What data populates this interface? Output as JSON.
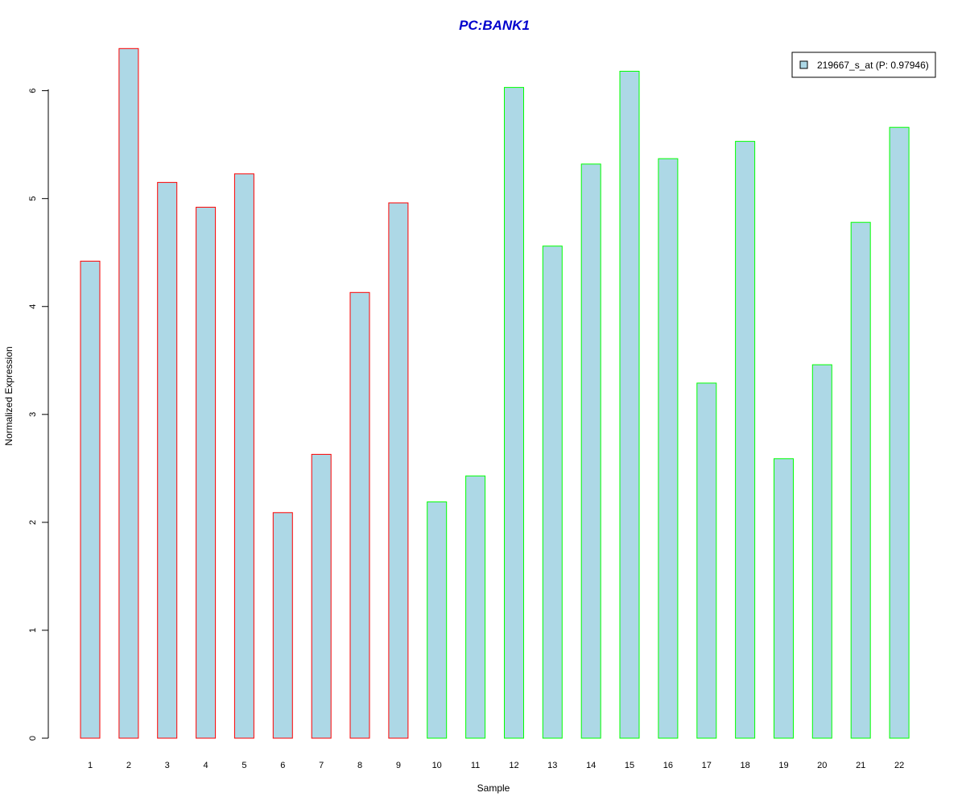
{
  "chart_data": {
    "type": "bar",
    "title": "PC:BANK1",
    "xlabel": "Sample",
    "ylabel": "Normalized Expression",
    "ylim": [
      0,
      6.4
    ],
    "yticks": [
      0,
      1,
      2,
      3,
      4,
      5,
      6
    ],
    "categories": [
      "1",
      "2",
      "3",
      "4",
      "5",
      "6",
      "7",
      "8",
      "9",
      "10",
      "11",
      "12",
      "13",
      "14",
      "15",
      "16",
      "17",
      "18",
      "19",
      "20",
      "21",
      "22"
    ],
    "values": [
      4.42,
      6.39,
      5.15,
      4.92,
      5.23,
      2.09,
      2.63,
      4.13,
      4.96,
      2.19,
      2.43,
      6.03,
      4.56,
      5.32,
      6.18,
      5.37,
      3.29,
      5.53,
      2.59,
      3.46,
      4.78,
      5.66
    ],
    "groups": [
      "red",
      "red",
      "red",
      "red",
      "red",
      "red",
      "red",
      "red",
      "red",
      "green",
      "green",
      "green",
      "green",
      "green",
      "green",
      "green",
      "green",
      "green",
      "green",
      "green",
      "green",
      "green"
    ],
    "legend": {
      "label": "219667_s_at (P: 0.97946)",
      "position": "top-right"
    },
    "colors": {
      "fill": "#add8e6",
      "red": "#ff0000",
      "green": "#00ff00",
      "title": "#0000cd"
    }
  }
}
